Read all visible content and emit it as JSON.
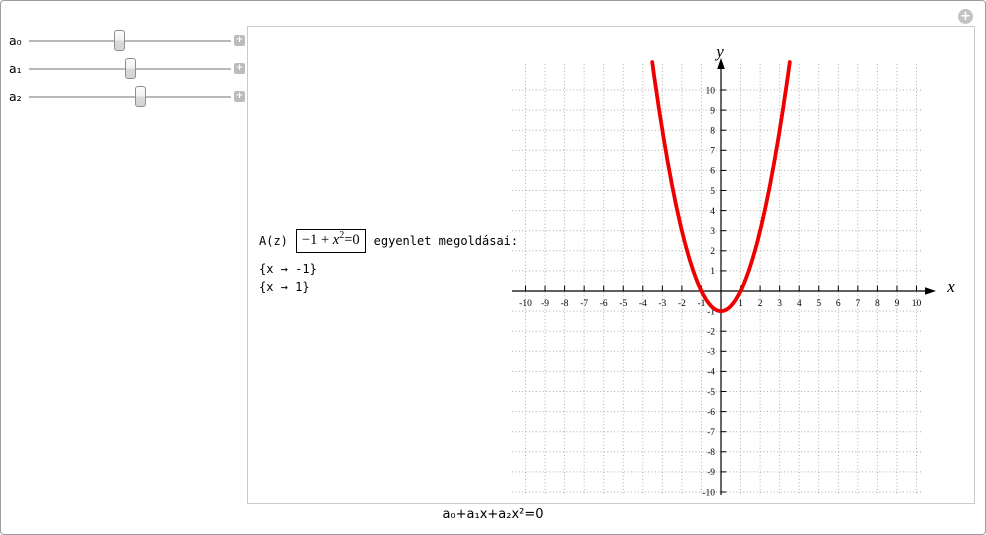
{
  "badge": {
    "icon": "+"
  },
  "controls": {
    "expand_button_icon": "+",
    "sliders": [
      {
        "label": "a₀",
        "value": -1,
        "min": -10,
        "max": 10
      },
      {
        "label": "a₁",
        "value": 0,
        "min": -10,
        "max": 10
      },
      {
        "label": "a₂",
        "value": 1,
        "min": -10,
        "max": 10
      }
    ]
  },
  "result": {
    "prefix": "A(z)",
    "equation_box": {
      "lead": "−1 + ",
      "variable": "x",
      "exponent": "2",
      "tail": "=0"
    },
    "suffix": "egyenlet megoldásai:",
    "solutions": [
      "{x → -1}",
      "{x → 1}"
    ]
  },
  "caption": {
    "formula": "a₀+a₁x+a₂x²=0"
  },
  "chart_data": {
    "type": "line",
    "title": "",
    "xlabel": "x",
    "ylabel": "y",
    "equation": "y = -1 + x²",
    "coefficients": {
      "a0": -1,
      "a1": 0,
      "a2": 1
    },
    "roots": [
      -1,
      1
    ],
    "x_plot_range": [
      -3.52,
      3.52
    ],
    "xlim": [
      -10.6,
      10.6
    ],
    "ylim": [
      -10.6,
      11.5
    ],
    "xticks": [
      -10,
      -9,
      -8,
      -7,
      -6,
      -5,
      -4,
      -3,
      -2,
      -1,
      1,
      2,
      3,
      4,
      5,
      6,
      7,
      8,
      9,
      10
    ],
    "yticks": [
      -10,
      -9,
      -8,
      -7,
      -6,
      -5,
      -4,
      -3,
      -2,
      -1,
      1,
      2,
      3,
      4,
      5,
      6,
      7,
      8,
      9,
      10
    ],
    "grid": {
      "style": "dotted",
      "spacing": 1
    },
    "grid_color": "#ababab",
    "axis_color": "#000000",
    "curve_color": "#ee0000",
    "curve_width": 3.8,
    "legend": "none"
  }
}
